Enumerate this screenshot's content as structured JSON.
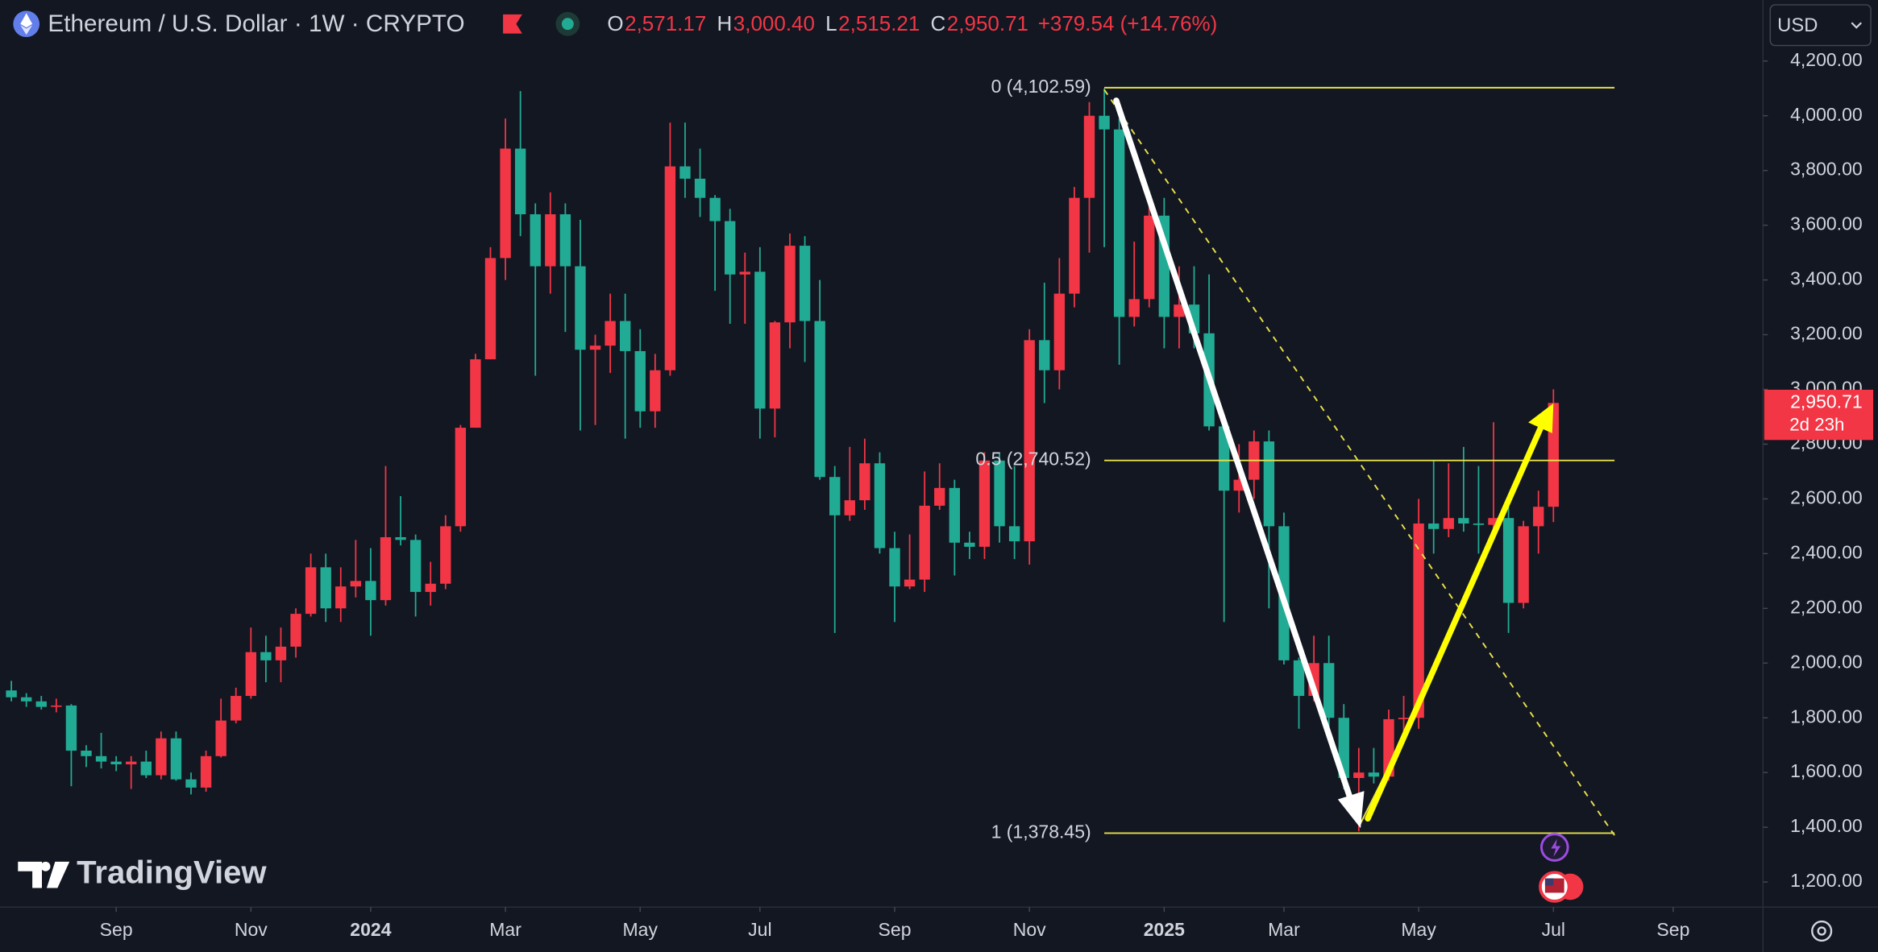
{
  "header": {
    "symbol": "Ethereum / U.S. Dollar · 1W · CRYPTO",
    "ohlc": [
      {
        "key": "O",
        "text": "2,571.17"
      },
      {
        "key": "H",
        "text": "3,000.40"
      },
      {
        "key": "L",
        "text": "2,515.21"
      },
      {
        "key": "C",
        "text": "2,950.71"
      }
    ],
    "change": "+379.54 (+14.76%)",
    "currency": "USD",
    "watermark": "TradingView"
  },
  "chart_data": {
    "type": "candlestick",
    "up_color": "#f23645",
    "down_color": "#22ab94",
    "grid": false,
    "open": [
      1900,
      1875,
      1860,
      1840,
      1845,
      1680,
      1660,
      1640,
      1630,
      1640,
      1590,
      1725,
      1575,
      1545,
      1660,
      1790,
      1880,
      2040,
      2010,
      2060,
      2180,
      2350,
      2200,
      2280,
      2300,
      2230,
      2460,
      2450,
      2260,
      2290,
      2500,
      2860,
      3110,
      3480,
      3880,
      3640,
      3450,
      3640,
      3450,
      3145,
      3160,
      3250,
      3140,
      2920,
      3070,
      3815,
      3770,
      3700,
      3615,
      3420,
      3430,
      2930,
      3245,
      3525,
      3250,
      2680,
      2540,
      2595,
      2730,
      2420,
      2280,
      2305,
      2575,
      2640,
      2440,
      2425,
      2740,
      2500,
      2445,
      3180,
      3070,
      3350,
      3700,
      4000,
      3950,
      3265,
      3330,
      3635,
      3265,
      3310,
      3205,
      2865,
      2630,
      2670,
      2810,
      2500,
      2010,
      1880,
      2000,
      1800,
      1580,
      1600,
      1585,
      1795,
      1800,
      2510,
      2490,
      2530,
      2510,
      2505,
      2530,
      2220,
      2500,
      2571.17
    ],
    "high": [
      1935,
      1890,
      1880,
      1870,
      1850,
      1700,
      1745,
      1660,
      1660,
      1680,
      1750,
      1750,
      1600,
      1680,
      1870,
      1910,
      2130,
      2100,
      2130,
      2200,
      2400,
      2400,
      2350,
      2450,
      2420,
      2720,
      2610,
      2470,
      2370,
      2540,
      2870,
      3130,
      3520,
      3990,
      4090,
      3680,
      3720,
      3680,
      3620,
      3200,
      3350,
      3350,
      3220,
      3130,
      3975,
      3975,
      3880,
      3710,
      3660,
      3500,
      3520,
      3250,
      3570,
      3560,
      3400,
      2720,
      2790,
      2820,
      2770,
      2480,
      2470,
      2700,
      2730,
      2670,
      2480,
      2770,
      2770,
      2720,
      3220,
      3390,
      3480,
      3740,
      4050,
      4100,
      3990,
      3540,
      3680,
      3700,
      3450,
      3450,
      3420,
      2890,
      2800,
      2850,
      2850,
      2550,
      2020,
      2100,
      2100,
      1850,
      1690,
      1690,
      1830,
      1880,
      2600,
      2740,
      2730,
      2790,
      2720,
      2880,
      2580,
      2520,
      2630,
      3000.4
    ],
    "low": [
      1860,
      1840,
      1830,
      1820,
      1550,
      1620,
      1615,
      1605,
      1540,
      1580,
      1575,
      1570,
      1520,
      1530,
      1655,
      1780,
      1870,
      1930,
      1930,
      2020,
      2170,
      2150,
      2150,
      2240,
      2100,
      2210,
      2430,
      2170,
      2210,
      2270,
      2480,
      2860,
      3110,
      3400,
      3560,
      3050,
      3350,
      3210,
      2850,
      2870,
      3060,
      2820,
      2860,
      2860,
      3050,
      3700,
      3630,
      3360,
      3240,
      3240,
      2820,
      2825,
      3150,
      3100,
      2670,
      2110,
      2520,
      2560,
      2400,
      2150,
      2270,
      2260,
      2560,
      2320,
      2380,
      2380,
      2440,
      2380,
      2360,
      2950,
      3000,
      3300,
      3500,
      3520,
      3090,
      3230,
      3300,
      3150,
      3150,
      3150,
      2850,
      2150,
      2550,
      2600,
      2200,
      1995,
      1760,
      1860,
      1760,
      1540,
      1385,
      1560,
      1570,
      1740,
      1760,
      2400,
      2460,
      2480,
      2400,
      2450,
      2110,
      2200,
      2400,
      2515.21
    ],
    "close": [
      1875,
      1860,
      1840,
      1845,
      1680,
      1660,
      1640,
      1630,
      1640,
      1590,
      1725,
      1575,
      1545,
      1660,
      1790,
      1880,
      2040,
      2010,
      2060,
      2180,
      2350,
      2200,
      2280,
      2300,
      2230,
      2460,
      2450,
      2260,
      2290,
      2500,
      2860,
      3110,
      3480,
      3880,
      3640,
      3450,
      3640,
      3450,
      3145,
      3160,
      3250,
      3140,
      2920,
      3070,
      3815,
      3770,
      3700,
      3615,
      3420,
      3430,
      2930,
      3245,
      3525,
      3250,
      2680,
      2540,
      2595,
      2730,
      2420,
      2280,
      2305,
      2575,
      2640,
      2440,
      2425,
      2740,
      2500,
      2445,
      3180,
      3070,
      3350,
      3700,
      4000,
      3950,
      3265,
      3330,
      3635,
      3265,
      3310,
      3205,
      2865,
      2630,
      2670,
      2810,
      2500,
      2010,
      1880,
      2000,
      1800,
      1580,
      1600,
      1585,
      1795,
      1800,
      2510,
      2490,
      2530,
      2510,
      2505,
      2530,
      2220,
      2500,
      2571.17,
      2950.71
    ],
    "xlim": [
      -0.76,
      117
    ],
    "xticks": [
      {
        "value": 7,
        "label": "Sep"
      },
      {
        "value": 16,
        "label": "Nov"
      },
      {
        "value": 24,
        "label": "2024"
      },
      {
        "value": 33,
        "label": "Mar"
      },
      {
        "value": 42,
        "label": "May"
      },
      {
        "value": 50,
        "label": "Jul"
      },
      {
        "value": 59,
        "label": "Sep"
      },
      {
        "value": 68,
        "label": "Nov"
      },
      {
        "value": 77,
        "label": "2025"
      },
      {
        "value": 85,
        "label": "Mar"
      },
      {
        "value": 94,
        "label": "May"
      },
      {
        "value": 103,
        "label": "Jul"
      },
      {
        "value": 111,
        "label": "Sep"
      }
    ],
    "ylim": [
      1108.2,
      4423
    ],
    "yticks": [
      {
        "value": 1200,
        "label": "1,200.00"
      },
      {
        "value": 1400,
        "label": "1,400.00"
      },
      {
        "value": 1600,
        "label": "1,600.00"
      },
      {
        "value": 1800,
        "label": "1,800.00"
      },
      {
        "value": 2000,
        "label": "2,000.00"
      },
      {
        "value": 2200,
        "label": "2,200.00"
      },
      {
        "value": 2400,
        "label": "2,400.00"
      },
      {
        "value": 2600,
        "label": "2,600.00"
      },
      {
        "value": 2800,
        "label": "2,800.00"
      },
      {
        "value": 3000,
        "label": "3,000.00"
      },
      {
        "value": 3200,
        "label": "3,200.00"
      },
      {
        "value": 3400,
        "label": "3,400.00"
      },
      {
        "value": 3600,
        "label": "3,600.00"
      },
      {
        "value": 3800,
        "label": "3,800.00"
      },
      {
        "value": 4000,
        "label": "4,000.00"
      },
      {
        "value": 4200,
        "label": "4,200.00"
      }
    ],
    "fib": {
      "color": "#e8e04a",
      "levels": [
        {
          "value": 4102.59,
          "label": "0 (4,102.59)"
        },
        {
          "value": 2740.52,
          "label": "0.5 (2,740.52)"
        },
        {
          "value": 1378.45,
          "label": "1 (1,378.45)"
        }
      ]
    },
    "price_tag": "2,950.71",
    "countdown": "2d 23h"
  }
}
